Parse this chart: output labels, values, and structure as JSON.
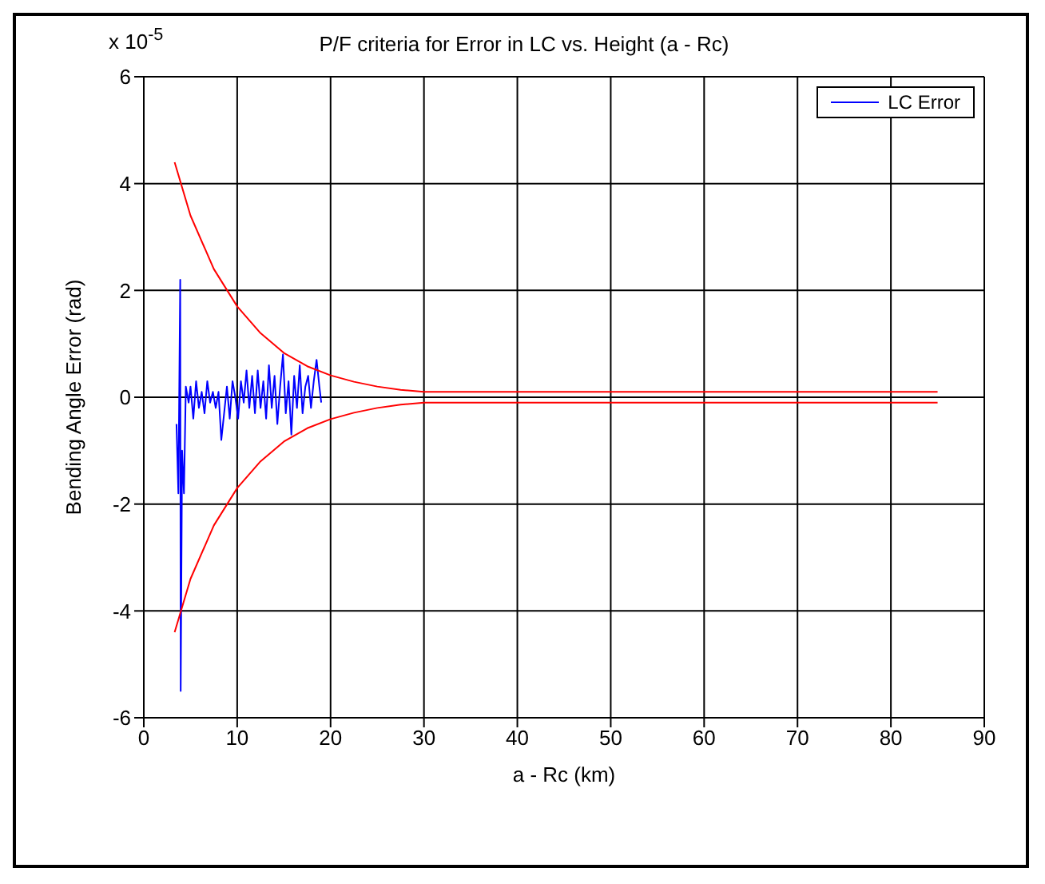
{
  "chart_data": {
    "type": "line",
    "title": "P/F criteria for Error in LC vs. Height (a - Rc)",
    "xlabel": "a - Rc (km)",
    "ylabel": "Bending Angle Error (rad)",
    "annotations": [
      "x 10$^{-5}$"
    ],
    "xlim": [
      0,
      90
    ],
    "xticks": [
      0,
      10,
      20,
      30,
      40,
      50,
      60,
      70,
      80,
      90
    ],
    "ylim": [
      -6,
      6
    ],
    "yticks": [
      -6,
      -4,
      -2,
      0,
      2,
      4,
      6
    ],
    "grid": true,
    "legend": "top right",
    "line_style": "solid",
    "marker": "none",
    "series": [
      {
        "name": "LC Error",
        "color": "#0000ff",
        "x": [
          3.5,
          3.7,
          3.9,
          3.95,
          4.1,
          4.3,
          4.5,
          4.8,
          5.0,
          5.3,
          5.6,
          5.9,
          6.2,
          6.5,
          6.8,
          7.1,
          7.4,
          7.7,
          8.0,
          8.3,
          8.6,
          8.9,
          9.2,
          9.5,
          9.8,
          10.1,
          10.4,
          10.7,
          11.0,
          11.3,
          11.6,
          11.9,
          12.2,
          12.5,
          12.8,
          13.1,
          13.4,
          13.7,
          14.0,
          14.3,
          14.6,
          14.9,
          15.2,
          15.5,
          15.8,
          16.1,
          16.4,
          16.7,
          17.0,
          17.3,
          17.6,
          17.9,
          18.2,
          18.5,
          18.8,
          19.0
        ],
        "values": [
          -0.5,
          -1.8,
          2.2,
          -5.5,
          -1.0,
          -1.8,
          0.2,
          -0.1,
          0.2,
          -0.4,
          0.3,
          -0.2,
          0.1,
          -0.3,
          0.3,
          -0.1,
          0.1,
          -0.2,
          0.1,
          -0.8,
          -0.3,
          0.2,
          -0.4,
          0.3,
          0.0,
          -0.4,
          0.3,
          -0.1,
          0.5,
          -0.2,
          0.4,
          -0.3,
          0.5,
          -0.2,
          0.3,
          -0.4,
          0.6,
          -0.2,
          0.4,
          -0.5,
          0.2,
          0.8,
          -0.3,
          0.3,
          -0.7,
          0.4,
          -0.2,
          0.6,
          -0.3,
          0.2,
          0.4,
          -0.2,
          0.3,
          0.7,
          0.2,
          -0.1
        ]
      },
      {
        "color": "#ff0000",
        "x": [
          3.3,
          5,
          7.5,
          10,
          12.5,
          15,
          17.5,
          20,
          22.5,
          25,
          27.5,
          30,
          85
        ],
        "values": [
          4.4,
          3.4,
          2.4,
          1.7,
          1.2,
          0.83,
          0.58,
          0.41,
          0.29,
          0.2,
          0.14,
          0.1,
          0.1
        ]
      },
      {
        "color": "#ff0000",
        "x": [
          3.3,
          5,
          7.5,
          10,
          12.5,
          15,
          17.5,
          20,
          22.5,
          25,
          27.5,
          30,
          85
        ],
        "values": [
          -4.4,
          -3.4,
          -2.4,
          -1.7,
          -1.2,
          -0.83,
          -0.58,
          -0.41,
          -0.29,
          -0.2,
          -0.14,
          -0.1,
          -0.1
        ]
      }
    ]
  }
}
